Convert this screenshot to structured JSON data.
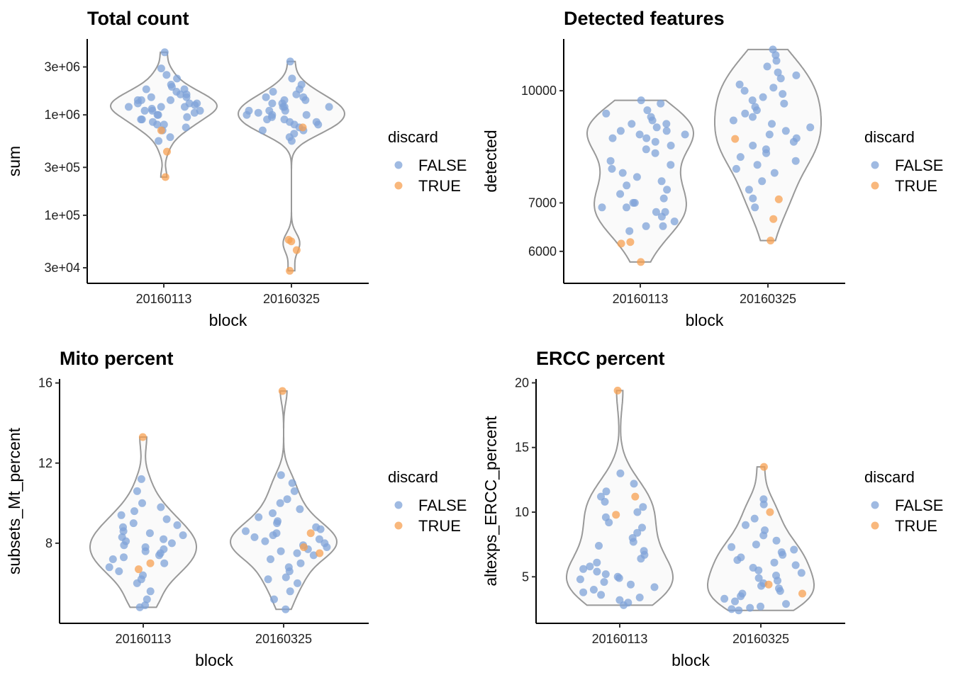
{
  "colors": {
    "FALSE": "#7fa3d8",
    "TRUE": "#f7a052",
    "violin_fill": "#fafafa",
    "violin_stroke": "#999999"
  },
  "legend": {
    "title": "discard",
    "entries": [
      "FALSE",
      "TRUE"
    ]
  },
  "chart_data": [
    {
      "type": "violin",
      "title": "Total count",
      "xlabel": "block",
      "ylabel": "sum",
      "yscale": "log10",
      "ylim": [
        21000,
        5700000
      ],
      "yticks": [
        30000,
        100000,
        300000,
        1000000,
        3000000
      ],
      "ytick_labels": [
        "3e+04",
        "1e+05",
        "3e+05",
        "1e+06",
        "3e+06"
      ],
      "categories": [
        "20160113",
        "20160325"
      ],
      "groups": [
        {
          "FALSE": [
            4200000.0,
            2900000.0,
            2500000.0,
            2300000.0,
            2000000.0,
            1900000.0,
            1800000.0,
            1800000.0,
            1700000.0,
            1600000.0,
            1600000.0,
            1500000.0,
            1500000.0,
            1400000.0,
            1400000.0,
            1400000.0,
            1300000.0,
            1300000.0,
            1300000.0,
            1250000.0,
            1200000.0,
            1200000.0,
            1200000.0,
            1150000.0,
            1100000.0,
            1100000.0,
            1100000.0,
            1050000.0,
            1000000.0,
            1000000.0,
            950000.0,
            900000.0,
            900000.0,
            850000.0,
            800000.0,
            800000.0,
            750000.0,
            700000.0,
            600000.0,
            550000.0
          ],
          "TRUE": [
            700000.0,
            430000.0,
            240000.0
          ]
        },
        {
          "FALSE": [
            3400000.0,
            2300000.0,
            2000000.0,
            1800000.0,
            1700000.0,
            1600000.0,
            1500000.0,
            1500000.0,
            1400000.0,
            1400000.0,
            1300000.0,
            1300000.0,
            1200000.0,
            1200000.0,
            1200000.0,
            1100000.0,
            1100000.0,
            1100000.0,
            1050000.0,
            1000000.0,
            1000000.0,
            1000000.0,
            950000.0,
            900000.0,
            900000.0,
            850000.0,
            850000.0,
            800000.0,
            800000.0,
            750000.0,
            700000.0,
            700000.0,
            650000.0,
            600000.0,
            550000.0
          ],
          "TRUE": [
            750000.0,
            57000.0,
            55000.0,
            45000.0,
            28000.0
          ]
        }
      ]
    },
    {
      "type": "violin",
      "title": "Detected features",
      "xlabel": "block",
      "ylabel": "detected",
      "yscale": "log10",
      "ylim": [
        5420,
        11790
      ],
      "yticks": [
        6000,
        7000,
        10000
      ],
      "ytick_labels": [
        "6000",
        "7000",
        "10000"
      ],
      "categories": [
        "20160113",
        "20160325"
      ],
      "groups": [
        {
          "FALSE": [
            9700,
            9600,
            9400,
            9300,
            9200,
            9100,
            9000,
            9000,
            8900,
            8800,
            8800,
            8700,
            8700,
            8600,
            8600,
            8500,
            8400,
            8300,
            8200,
            8000,
            7900,
            7800,
            7700,
            7600,
            7500,
            7400,
            7300,
            7200,
            7100,
            7000,
            7000,
            6900,
            6900,
            6800,
            6800,
            6700,
            6600,
            6500,
            6500,
            6400
          ],
          "TRUE": [
            6150,
            6180,
            5800
          ]
        },
        {
          "FALSE": [
            11400,
            11200,
            11000,
            10800,
            10600,
            10500,
            10400,
            10200,
            10100,
            10000,
            9900,
            9800,
            9700,
            9600,
            9500,
            9400,
            9300,
            9200,
            9100,
            9000,
            8900,
            8800,
            8700,
            8600,
            8500,
            8400,
            8300,
            8200,
            8100,
            8000,
            7900,
            7800,
            7700,
            7500,
            7300,
            7100,
            6900
          ],
          "TRUE": [
            8580,
            7080,
            6650,
            6210
          ]
        }
      ]
    },
    {
      "type": "violin",
      "title": "Mito percent",
      "xlabel": "block",
      "ylabel": "subsets_Mt_percent",
      "yscale": "linear",
      "ylim": [
        4.0,
        16.2
      ],
      "yticks": [
        8,
        12,
        16
      ],
      "ytick_labels": [
        "8",
        "12",
        "16"
      ],
      "categories": [
        "20160113",
        "20160325"
      ],
      "groups": [
        {
          "FALSE": [
            11.2,
            10.6,
            10.0,
            9.8,
            9.6,
            9.4,
            9.2,
            9.0,
            8.9,
            8.8,
            8.6,
            8.5,
            8.4,
            8.3,
            8.2,
            8.1,
            8.0,
            7.9,
            7.8,
            7.7,
            7.6,
            7.5,
            7.4,
            7.3,
            7.2,
            7.0,
            6.8,
            6.6,
            6.4,
            6.2,
            6.0,
            5.6,
            5.2,
            4.9,
            4.8
          ],
          "TRUE": [
            13.3,
            6.7,
            7.0
          ]
        },
        {
          "FALSE": [
            11.4,
            11.0,
            10.6,
            10.2,
            10.0,
            9.7,
            9.5,
            9.3,
            9.1,
            9.0,
            8.8,
            8.7,
            8.6,
            8.5,
            8.4,
            8.3,
            8.2,
            8.1,
            8.0,
            7.9,
            7.8,
            7.7,
            7.6,
            7.5,
            7.4,
            7.2,
            7.0,
            6.8,
            6.6,
            6.3,
            6.2,
            6.0,
            5.6,
            5.2,
            4.7
          ],
          "TRUE": [
            15.6,
            8.5,
            7.8,
            7.5
          ]
        }
      ]
    },
    {
      "type": "violin",
      "title": "ERCC percent",
      "xlabel": "block",
      "ylabel": "altexps_ERCC_percent",
      "yscale": "linear",
      "ylim": [
        1.4,
        20.3
      ],
      "yticks": [
        5,
        10,
        15,
        20
      ],
      "ytick_labels": [
        "5",
        "10",
        "15",
        "20"
      ],
      "categories": [
        "20160113",
        "20160325"
      ],
      "groups": [
        {
          "FALSE": [
            13.0,
            12.2,
            11.6,
            11.2,
            10.8,
            10.4,
            10.0,
            9.6,
            9.2,
            8.8,
            8.4,
            8.0,
            7.7,
            7.4,
            7.0,
            6.7,
            6.4,
            6.1,
            5.8,
            5.6,
            5.4,
            5.2,
            5.0,
            4.9,
            4.8,
            4.6,
            4.4,
            4.2,
            4.0,
            3.8,
            3.6,
            3.4,
            3.2,
            3.0,
            2.8
          ],
          "TRUE": [
            19.4,
            11.2,
            9.8
          ]
        },
        {
          "FALSE": [
            11.0,
            10.6,
            9.5,
            9.0,
            8.6,
            8.2,
            7.8,
            7.5,
            7.3,
            7.1,
            6.9,
            6.7,
            6.5,
            6.3,
            6.1,
            5.9,
            5.7,
            5.5,
            5.3,
            5.1,
            4.9,
            4.7,
            4.5,
            4.3,
            4.1,
            3.9,
            3.7,
            3.5,
            3.3,
            3.1,
            2.9,
            2.7,
            2.6,
            2.5,
            2.4
          ],
          "TRUE": [
            13.5,
            10.0,
            4.4,
            3.7
          ]
        }
      ]
    }
  ]
}
